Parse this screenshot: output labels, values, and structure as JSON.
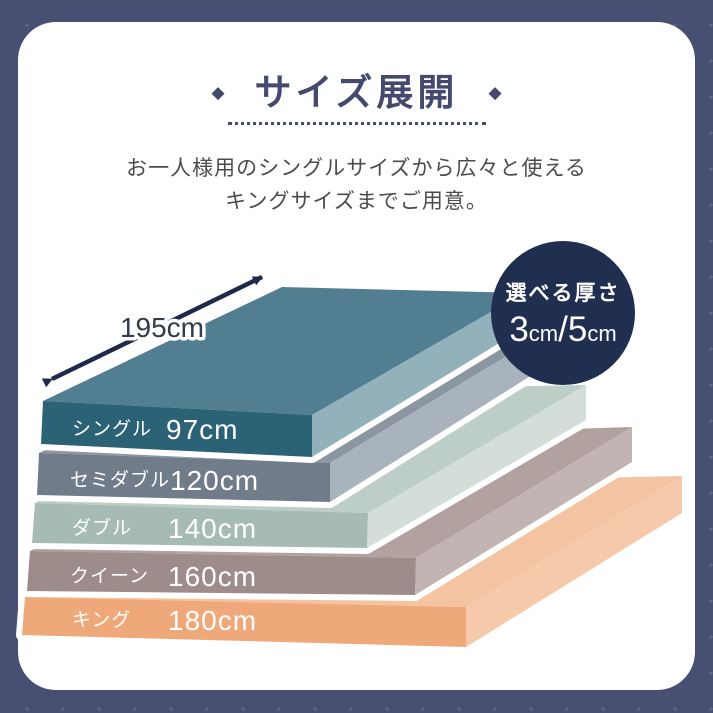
{
  "page": {
    "background": "#475073",
    "pattern_dot_color": "#5d6590",
    "card_color": "#ffffff"
  },
  "header": {
    "decor_left": "◆",
    "decor_right": "◆",
    "title": "サイズ展開",
    "title_color": "#434a6d"
  },
  "intro": {
    "line1": "お一人様用のシングルサイズから広々と使える",
    "line2": "キングサイズまでご用意。"
  },
  "badge": {
    "label": "選べる厚さ",
    "value": "3cm/5cm",
    "background": "#202e4f",
    "text_color": "#ffffff"
  },
  "dimension": {
    "length_label": "195cm",
    "arrow_color": "#1c2b49",
    "label_color": "#333a4a"
  },
  "sizes": [
    {
      "name": "シングル",
      "width": "97cm",
      "width_cm": 97,
      "colors": {
        "front": "#2c6276",
        "top": "#527e92",
        "side": "#92b1bb"
      }
    },
    {
      "name": "セミダブル",
      "width": "120cm",
      "width_cm": 120,
      "colors": {
        "front": "#717c8b",
        "top": "#8b96a1",
        "side": "#a9b3bd"
      }
    },
    {
      "name": "ダブル",
      "width": "140cm",
      "width_cm": 140,
      "colors": {
        "front": "#a6bbb3",
        "top": "#bdcec6",
        "side": "#d2ded7"
      }
    },
    {
      "name": "クイーン",
      "width": "160cm",
      "width_cm": 160,
      "colors": {
        "front": "#9d8c8a",
        "top": "#b1a2a0",
        "side": "#c2b4b2"
      }
    },
    {
      "name": "キング",
      "width": "180cm",
      "width_cm": 180,
      "colors": {
        "front": "#efa87a",
        "top": "#f3c3a2",
        "side": "#f6c9ab"
      }
    }
  ],
  "chart_data": {
    "type": "table",
    "title": "サイズ展開",
    "categories": [
      "シングル",
      "セミダブル",
      "ダブル",
      "クイーン",
      "キング"
    ],
    "values_cm": [
      97,
      120,
      140,
      160,
      180
    ],
    "length_cm": 195,
    "thickness_options_cm": [
      3,
      5
    ]
  }
}
